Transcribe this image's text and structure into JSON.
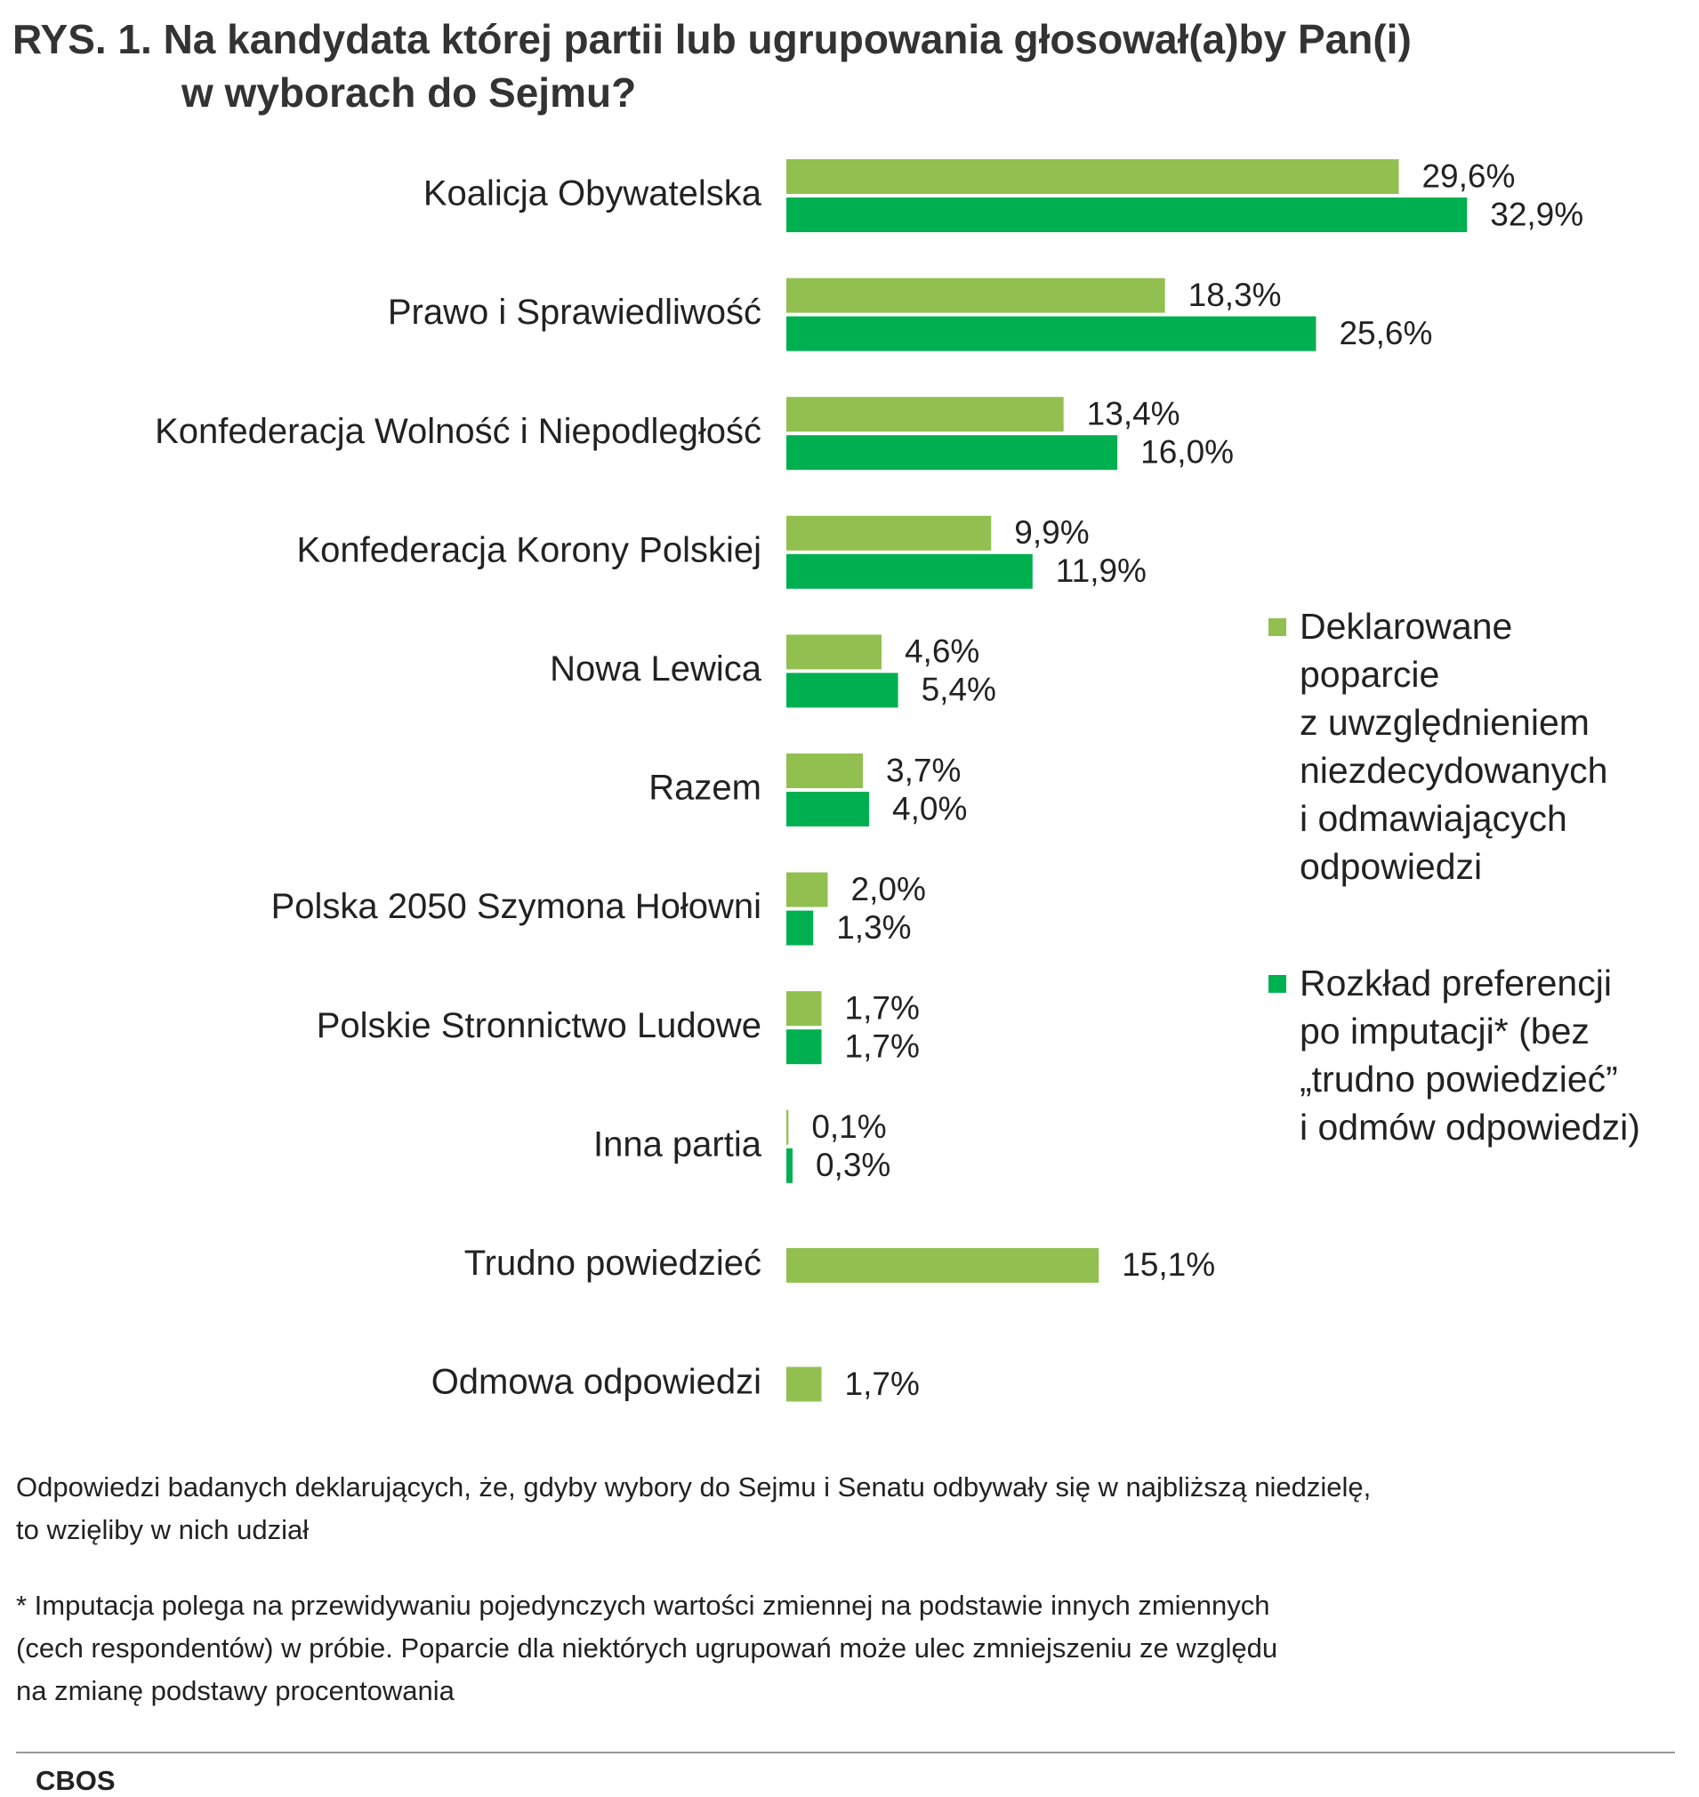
{
  "chart_data": {
    "type": "hbar",
    "title": "RYS. 1. Na kandydata której partii lub ugrupowania głosował(a)by Pan(i)\nw wyborach do Sejmu?",
    "categories": [
      "Koalicja Obywatelska",
      "Prawo i Sprawiedliwość",
      "Konfederacja Wolność i Niepodległość",
      "Konfederacja Korony Polskiej",
      "Nowa Lewica",
      "Razem",
      "Polska 2050 Szymona Hołowni",
      "Polskie Stronnictwo Ludowe",
      "Inna partia",
      "Trudno powiedzieć",
      "Odmowa odpowiedzi"
    ],
    "series": [
      {
        "name": "Deklarowane\npoparcie\nz uwzględnieniem\nniezdecydowanych\ni odmawiających\nodpowiedzi",
        "color": "#92c050",
        "values": [
          29.6,
          18.3,
          13.4,
          9.9,
          4.6,
          3.7,
          2.0,
          1.7,
          0.1,
          15.1,
          1.7
        ],
        "value_labels": [
          "29,6%",
          "18,3%",
          "13,4%",
          "9,9%",
          "4,6%",
          "3,7%",
          "2,0%",
          "1,7%",
          "0,1%",
          "15,1%",
          "1,7%"
        ]
      },
      {
        "name": "Rozkład preferencji\npo imputacji* (bez\n„trudno powiedzieć”\ni odmów odpowiedzi)",
        "color": "#00b050",
        "values": [
          32.9,
          25.6,
          16.0,
          11.9,
          5.4,
          4.0,
          1.3,
          1.7,
          0.3,
          null,
          null
        ],
        "value_labels": [
          "32,9%",
          "25,6%",
          "16,0%",
          "11,9%",
          "5,4%",
          "4,0%",
          "1,3%",
          "1,7%",
          "0,3%",
          null,
          null
        ]
      }
    ]
  },
  "notes": [
    "Odpowiedzi badanych deklarujących, że, gdyby wybory do Sejmu i Senatu odbywały się w najbliższą niedzielę,\nto wzięliby w nich udział",
    "* Imputacja polega na przewidywaniu pojedynczych wartości zmiennej na podstawie innych zmiennych\n(cech respondentów) w próbie. Poparcie dla niektórych ugrupowań może ulec zmniejszeniu ze względu\nna zmianę podstawy procentowania"
  ],
  "source": "CBOS"
}
